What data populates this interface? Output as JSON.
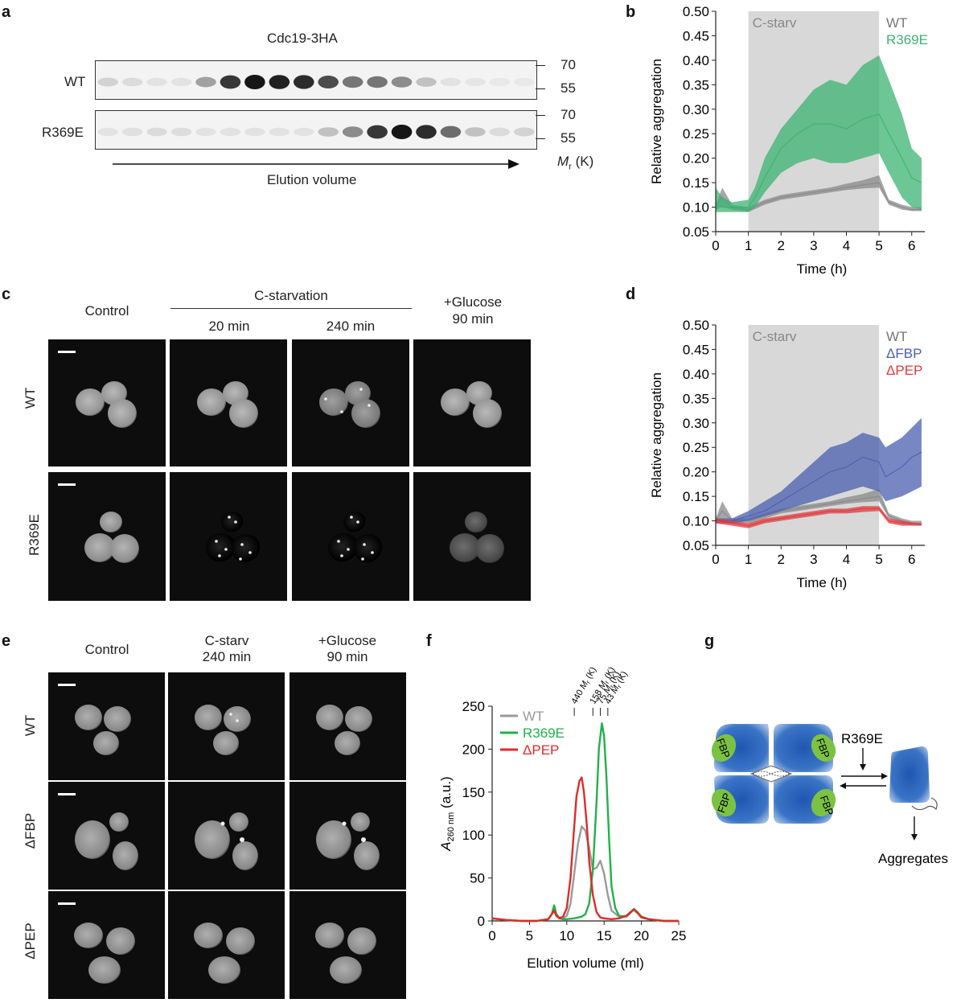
{
  "panel_labels": {
    "a": "a",
    "b": "b",
    "c": "c",
    "d": "d",
    "e": "e",
    "f": "f",
    "g": "g"
  },
  "panel_a": {
    "title": "Cdc19-3HA",
    "rows": [
      {
        "label": "WT",
        "band_intensities": [
          0.12,
          0.08,
          0.05,
          0.05,
          0.35,
          0.85,
          1.0,
          0.95,
          0.9,
          0.75,
          0.55,
          0.55,
          0.45,
          0.2,
          0.05,
          0.03,
          0.02,
          0.02
        ]
      },
      {
        "label": "R369E",
        "band_intensities": [
          0.04,
          0.06,
          0.08,
          0.07,
          0.05,
          0.05,
          0.05,
          0.05,
          0.05,
          0.2,
          0.45,
          0.85,
          1.0,
          0.9,
          0.6,
          0.2,
          0.08,
          0.12
        ]
      }
    ],
    "markers": [
      "70",
      "55"
    ],
    "mr_label": "M",
    "mr_sub": "r",
    "mr_unit": " (K)",
    "arrow_label": "Elution volume"
  },
  "panel_b": {
    "chart_data": {
      "type": "line",
      "title": "",
      "xlabel": "Time (h)",
      "ylabel": "Relative aggregation",
      "xlim": [
        0,
        6.4
      ],
      "ylim": [
        0.05,
        0.5
      ],
      "xticks": [
        "0",
        "1",
        "2",
        "3",
        "4",
        "5",
        "6"
      ],
      "yticks": [
        "0.05",
        "0.10",
        "0.15",
        "0.20",
        "0.25",
        "0.30",
        "0.35",
        "0.40",
        "0.45",
        "0.50"
      ],
      "shaded_region": {
        "label": "C-starv",
        "x": [
          1,
          5
        ]
      },
      "series": [
        {
          "name": "WT",
          "color": "#8a8a8a",
          "x": [
            0,
            0.2,
            0.5,
            1,
            1.5,
            2,
            2.5,
            3,
            3.5,
            4,
            4.5,
            5,
            5.3,
            5.7,
            6,
            6.3
          ],
          "y": [
            0.1,
            0.12,
            0.1,
            0.095,
            0.11,
            0.12,
            0.125,
            0.13,
            0.135,
            0.14,
            0.145,
            0.15,
            0.11,
            0.1,
            0.095,
            0.095
          ],
          "lower": [
            0.095,
            0.1,
            0.095,
            0.09,
            0.105,
            0.115,
            0.12,
            0.125,
            0.13,
            0.135,
            0.138,
            0.14,
            0.105,
            0.095,
            0.092,
            0.092
          ],
          "upper": [
            0.105,
            0.14,
            0.105,
            0.1,
            0.115,
            0.125,
            0.13,
            0.135,
            0.14,
            0.148,
            0.155,
            0.165,
            0.115,
            0.105,
            0.1,
            0.1
          ]
        },
        {
          "name": "R369E",
          "color": "#3cb371",
          "x": [
            0,
            0.2,
            0.5,
            1,
            1.2,
            1.5,
            2,
            2.5,
            3,
            3.5,
            4,
            4.5,
            5,
            5.3,
            5.7,
            6,
            6.3
          ],
          "y": [
            0.11,
            0.1,
            0.1,
            0.1,
            0.12,
            0.16,
            0.22,
            0.25,
            0.27,
            0.27,
            0.26,
            0.28,
            0.29,
            0.25,
            0.2,
            0.16,
            0.15
          ],
          "lower": [
            0.09,
            0.09,
            0.09,
            0.09,
            0.1,
            0.13,
            0.17,
            0.19,
            0.2,
            0.19,
            0.19,
            0.2,
            0.21,
            0.17,
            0.12,
            0.1,
            0.095
          ],
          "upper": [
            0.14,
            0.12,
            0.11,
            0.115,
            0.14,
            0.2,
            0.26,
            0.3,
            0.34,
            0.36,
            0.35,
            0.39,
            0.41,
            0.36,
            0.29,
            0.22,
            0.2
          ]
        }
      ]
    }
  },
  "panel_c": {
    "col_headers": [
      "Control",
      "20 min",
      "240 min"
    ],
    "group_label": "C-starvation",
    "last_header_line1": "+Glucose",
    "last_header_line2": "90 min",
    "row_labels": [
      "WT",
      "R369E"
    ]
  },
  "panel_d": {
    "chart_data": {
      "type": "line",
      "title": "",
      "xlabel": "Time (h)",
      "ylabel": "Relative aggregation",
      "xlim": [
        0,
        6.4
      ],
      "ylim": [
        0.05,
        0.5
      ],
      "xticks": [
        "0",
        "1",
        "2",
        "3",
        "4",
        "5",
        "6"
      ],
      "yticks": [
        "0.05",
        "0.10",
        "0.15",
        "0.20",
        "0.25",
        "0.30",
        "0.35",
        "0.40",
        "0.45",
        "0.50"
      ],
      "shaded_region": {
        "label": "C-starv",
        "x": [
          1,
          5
        ]
      },
      "series": [
        {
          "name": "WT",
          "color": "#8a8a8a",
          "x": [
            0,
            0.2,
            0.5,
            1,
            1.5,
            2,
            2.5,
            3,
            3.5,
            4,
            4.5,
            5,
            5.3,
            5.7,
            6,
            6.3
          ],
          "y": [
            0.1,
            0.12,
            0.1,
            0.1,
            0.11,
            0.12,
            0.125,
            0.13,
            0.135,
            0.14,
            0.145,
            0.15,
            0.11,
            0.1,
            0.095,
            0.095
          ],
          "lower": [
            0.095,
            0.1,
            0.095,
            0.095,
            0.105,
            0.115,
            0.12,
            0.125,
            0.13,
            0.135,
            0.138,
            0.14,
            0.105,
            0.095,
            0.092,
            0.092
          ],
          "upper": [
            0.105,
            0.14,
            0.105,
            0.105,
            0.115,
            0.125,
            0.13,
            0.135,
            0.14,
            0.148,
            0.155,
            0.165,
            0.115,
            0.105,
            0.1,
            0.1
          ]
        },
        {
          "name": "ΔFBP",
          "color": "#4a5fb0",
          "x": [
            0,
            0.5,
            1,
            1.5,
            2,
            2.5,
            3,
            3.5,
            4,
            4.5,
            5,
            5.2,
            5.7,
            6,
            6.3
          ],
          "y": [
            0.1,
            0.1,
            0.11,
            0.12,
            0.14,
            0.16,
            0.18,
            0.2,
            0.21,
            0.23,
            0.22,
            0.19,
            0.21,
            0.23,
            0.24
          ],
          "lower": [
            0.095,
            0.095,
            0.1,
            0.11,
            0.12,
            0.13,
            0.14,
            0.15,
            0.16,
            0.17,
            0.16,
            0.14,
            0.15,
            0.16,
            0.17
          ],
          "upper": [
            0.105,
            0.105,
            0.12,
            0.14,
            0.16,
            0.19,
            0.22,
            0.25,
            0.26,
            0.28,
            0.27,
            0.25,
            0.27,
            0.29,
            0.31
          ]
        },
        {
          "name": "ΔPEP",
          "color": "#e03a3e",
          "x": [
            0,
            0.5,
            1,
            1.5,
            2,
            2.5,
            3,
            3.5,
            4,
            4.5,
            5,
            5.3,
            5.7,
            6,
            6.3
          ],
          "y": [
            0.1,
            0.095,
            0.09,
            0.1,
            0.105,
            0.11,
            0.115,
            0.12,
            0.12,
            0.125,
            0.125,
            0.1,
            0.095,
            0.093,
            0.092
          ],
          "lower": [
            0.095,
            0.09,
            0.085,
            0.095,
            0.1,
            0.105,
            0.11,
            0.115,
            0.115,
            0.118,
            0.12,
            0.095,
            0.09,
            0.09,
            0.09
          ],
          "upper": [
            0.105,
            0.1,
            0.095,
            0.105,
            0.11,
            0.115,
            0.12,
            0.125,
            0.125,
            0.13,
            0.13,
            0.105,
            0.1,
            0.097,
            0.095
          ]
        }
      ]
    }
  },
  "panel_e": {
    "col_headers": [
      {
        "line1": "Control",
        "line2": ""
      },
      {
        "line1": "C-starv",
        "line2": "240 min"
      },
      {
        "line1": "+Glucose",
        "line2": "90 min"
      }
    ],
    "row_labels": [
      "WT",
      "ΔFBP",
      "ΔPEP"
    ]
  },
  "panel_f": {
    "chart_data": {
      "type": "line",
      "title": "",
      "xlabel": "Elution volume (ml)",
      "ylabel_main": "A",
      "ylabel_sub": "260 nm",
      "ylabel_unit": " (a.u.)",
      "xlim": [
        0,
        25
      ],
      "ylim": [
        0,
        250
      ],
      "xticks": [
        "0",
        "5",
        "10",
        "15",
        "20",
        "25"
      ],
      "yticks": [
        "0",
        "50",
        "100",
        "150",
        "200",
        "250"
      ],
      "markers": [
        {
          "x": 11,
          "label_value": "440",
          "label_unit": "(K)"
        },
        {
          "x": 13.5,
          "label_value": "158",
          "label_unit": "(K)"
        },
        {
          "x": 14.5,
          "label_value": "75",
          "label_unit": "(K)"
        },
        {
          "x": 15.5,
          "label_value": "43",
          "label_unit": "(K)"
        }
      ],
      "marker_mr": "M",
      "marker_mr_sub": "r",
      "series": [
        {
          "name": "WT",
          "color": "#9a9a9a",
          "x": [
            0,
            2,
            4,
            6,
            7.5,
            8,
            8.3,
            8.6,
            9,
            9.5,
            10,
            10.5,
            11,
            11.5,
            12,
            12.5,
            13,
            13.5,
            14,
            14.5,
            15,
            15.5,
            16,
            17,
            18,
            18.5,
            19,
            19.5,
            20,
            21,
            22,
            23,
            24,
            25
          ],
          "y": [
            3,
            1,
            0,
            0,
            2,
            8,
            18,
            8,
            4,
            3,
            6,
            20,
            55,
            90,
            110,
            105,
            85,
            60,
            62,
            70,
            55,
            30,
            12,
            5,
            6,
            10,
            14,
            10,
            5,
            2,
            1,
            0,
            0,
            0
          ]
        },
        {
          "name": "R369E",
          "color": "#22b04a",
          "x": [
            0,
            2,
            4,
            6,
            7.5,
            8,
            8.3,
            8.6,
            9,
            9.5,
            10,
            11,
            12,
            12.5,
            13,
            13.5,
            14,
            14.3,
            14.7,
            15,
            15.3,
            15.7,
            16,
            16.5,
            17,
            18,
            18.5,
            19,
            19.5,
            20,
            21,
            22,
            23,
            24,
            25
          ],
          "y": [
            3,
            1,
            0,
            0,
            2,
            8,
            18,
            8,
            3,
            2,
            2,
            3,
            5,
            8,
            20,
            60,
            140,
            200,
            230,
            215,
            170,
            90,
            40,
            15,
            6,
            5,
            9,
            14,
            10,
            5,
            2,
            1,
            0,
            0,
            0
          ]
        },
        {
          "name": "ΔPEP",
          "color": "#e02a2a",
          "x": [
            0,
            2,
            4,
            6,
            7.5,
            8,
            8.3,
            8.6,
            9,
            9.5,
            10,
            10.5,
            11,
            11.3,
            11.7,
            12,
            12.3,
            12.7,
            13,
            13.5,
            14,
            14.5,
            15,
            16,
            17,
            18,
            18.5,
            19,
            19.5,
            20,
            21,
            22,
            23,
            24,
            25
          ],
          "y": [
            3,
            1,
            0,
            0,
            2,
            8,
            12,
            6,
            3,
            5,
            15,
            50,
            110,
            145,
            163,
            167,
            150,
            110,
            70,
            30,
            10,
            4,
            3,
            2,
            3,
            6,
            10,
            13,
            9,
            4,
            2,
            1,
            0,
            0,
            0
          ]
        }
      ]
    }
  },
  "panel_g": {
    "label_mutation": "R369E",
    "fbp_label": "FBP",
    "label_aggregates": "Aggregates"
  },
  "colors": {
    "wt": "#8a8a8a",
    "r369e": "#3cb371",
    "dfbp": "#4a5fb0",
    "dpep": "#e03a3e",
    "shade": "#d8d8d8",
    "tetramer": "#2a62b8",
    "fbp": "#7cc242"
  }
}
